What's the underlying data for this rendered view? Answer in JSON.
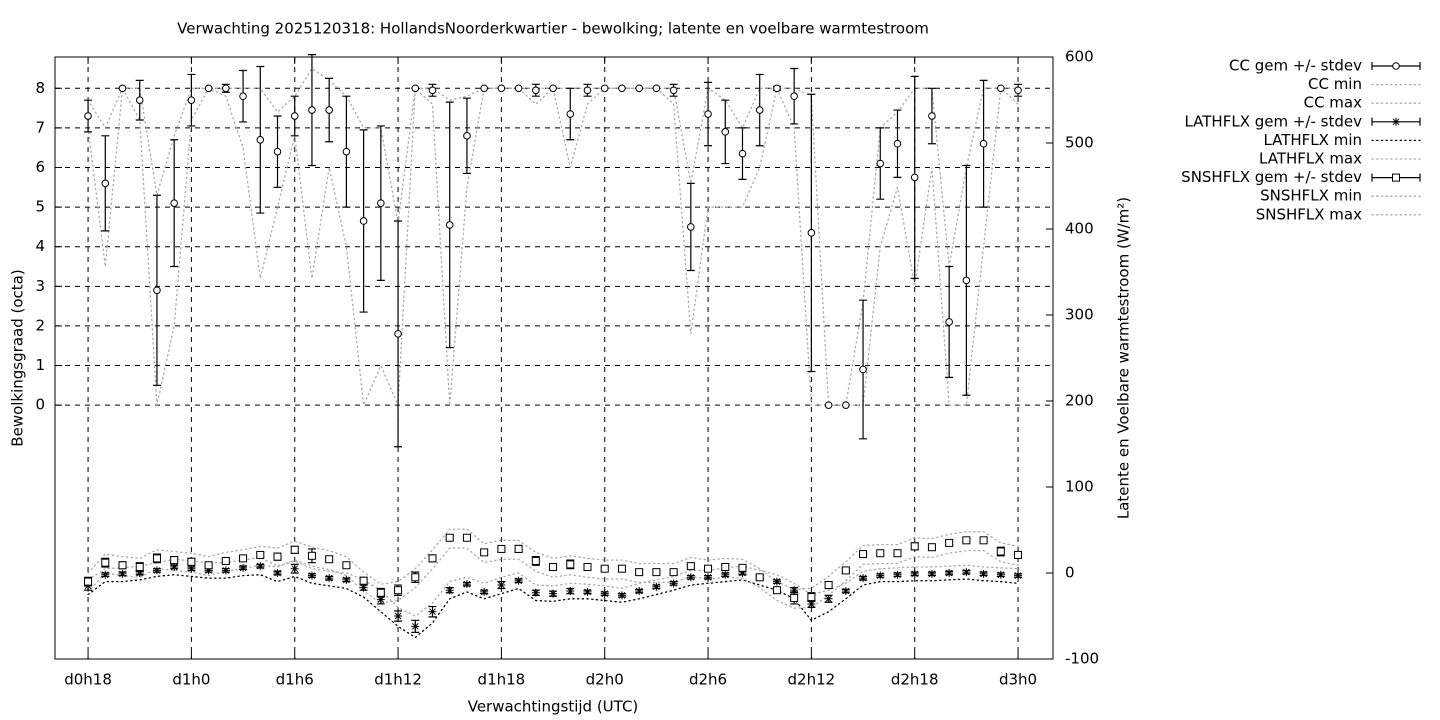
{
  "chart_data": {
    "type": "errorbar",
    "title": "Verwachting 2025120318: HollandsNoorderkwartier - bewolking; latente en voelbare warmtestroom",
    "xlabel": "Verwachtingstijd (UTC)",
    "ylabel": "Bewolkingsgraad (octa)",
    "y2label": "Latente en Voelbare warmtestroom (W/m²)",
    "x": [
      18,
      19,
      20,
      21,
      22,
      23,
      24,
      25,
      26,
      27,
      28,
      29,
      30,
      31,
      32,
      33,
      34,
      35,
      36,
      37,
      38,
      39,
      40,
      41,
      42,
      43,
      44,
      45,
      46,
      47,
      48,
      49,
      50,
      51,
      52,
      53,
      54,
      55,
      56,
      57,
      58,
      59,
      60,
      61,
      62,
      63,
      64,
      65,
      66,
      67,
      68,
      69,
      70,
      71,
      72
    ],
    "xlim": [
      16.08,
      74.03
    ],
    "xticks": [
      {
        "value": 18,
        "label": "d0h18"
      },
      {
        "value": 24,
        "label": "d1h0"
      },
      {
        "value": 30,
        "label": "d1h6"
      },
      {
        "value": 36,
        "label": "d1h12"
      },
      {
        "value": 42,
        "label": "d1h18"
      },
      {
        "value": 48,
        "label": "d2h0"
      },
      {
        "value": 54,
        "label": "d2h6"
      },
      {
        "value": 60,
        "label": "d2h12"
      },
      {
        "value": 66,
        "label": "d2h18"
      },
      {
        "value": 72,
        "label": "d3h0"
      }
    ],
    "ylim": [
      -6.41,
      8.79
    ],
    "yticks": [
      0,
      1,
      2,
      3,
      4,
      5,
      6,
      7,
      8
    ],
    "y2lim": [
      -100,
      600
    ],
    "y2ticks": [
      -100,
      0,
      100,
      200,
      300,
      400,
      500,
      600
    ],
    "grid": true,
    "legend": "outside-right",
    "series": [
      {
        "name": "CC gem +/- stdev",
        "color": "#000000",
        "marker": "circle",
        "values": [
          7.3,
          5.6,
          8.0,
          7.7,
          2.9,
          5.1,
          7.7,
          8.0,
          8.0,
          7.8,
          6.7,
          6.4,
          7.3,
          7.45,
          7.45,
          6.4,
          4.65,
          5.1,
          1.8,
          8.0,
          7.95,
          4.55,
          6.8,
          8.0,
          8.0,
          8.0,
          7.95,
          8.0,
          7.35,
          7.95,
          8.0,
          8.0,
          8.0,
          8.0,
          7.95,
          4.5,
          7.35,
          6.9,
          6.35,
          7.45,
          8.0,
          7.8,
          4.35,
          0,
          0,
          0.9,
          6.1,
          6.6,
          5.75,
          7.3,
          2.1,
          3.15,
          6.6,
          8.0,
          7.95
        ],
        "errors": [
          0.4,
          1.2,
          0,
          0.5,
          2.4,
          1.6,
          0.65,
          0,
          0.1,
          0.65,
          1.85,
          0.9,
          0.5,
          1.4,
          0.8,
          1.4,
          2.3,
          1.95,
          2.85,
          0,
          0.15,
          3.1,
          0.95,
          0,
          0,
          0,
          0.15,
          0,
          0.65,
          0.15,
          0,
          0,
          0,
          0,
          0.15,
          1.1,
          0.8,
          0.8,
          0.65,
          0.9,
          0.05,
          0.7,
          3.5,
          0,
          0,
          1.75,
          0.9,
          0.85,
          2.55,
          0.7,
          1.4,
          2.9,
          1.6,
          0,
          0.15
        ]
      },
      {
        "name": "CC min",
        "color": "#a8a8a8",
        "dash": "dotted",
        "values": [
          7,
          3.5,
          8,
          7.2,
          0,
          2,
          7.2,
          8,
          7.8,
          6.5,
          3.2,
          5,
          6.8,
          3.2,
          6,
          4,
          0,
          1,
          0,
          8,
          7.6,
          0,
          5.5,
          8,
          8,
          8,
          7.6,
          8,
          6,
          7.6,
          8,
          8,
          8,
          8,
          7.6,
          1.8,
          5,
          5,
          5,
          6,
          8,
          7,
          0,
          0,
          0,
          0,
          4,
          5.5,
          3,
          6,
          0,
          0,
          4,
          8,
          7.6
        ]
      },
      {
        "name": "CC max",
        "color": "#a8a8a8",
        "dash": "dotted",
        "values": [
          7.7,
          7,
          8,
          8,
          5.3,
          6.8,
          8,
          8,
          8,
          8,
          8,
          7.4,
          7.8,
          8.5,
          8.2,
          7.8,
          7,
          7,
          4.6,
          8,
          8,
          7.7,
          7.8,
          8,
          8,
          8,
          8,
          8,
          8,
          8,
          8,
          8,
          8,
          8,
          8,
          5.6,
          8,
          7.7,
          7,
          8,
          8,
          8,
          7.8,
          0,
          0,
          2.6,
          7,
          7.4,
          8,
          8,
          3.5,
          6,
          8,
          8,
          8
        ]
      },
      {
        "name": "LATHFLX gem +/- stdev",
        "color": "#000000",
        "marker": "asterisk",
        "axis": "y2",
        "values": [
          -15,
          -2,
          -1,
          0,
          3,
          7,
          5,
          3,
          3,
          6,
          8,
          0,
          5,
          -3,
          -6,
          -8,
          -17,
          -31,
          -50,
          -62,
          -45,
          -20,
          -13,
          -22,
          -14,
          -9,
          -23,
          -24,
          -21,
          -22,
          -24,
          -26,
          -21,
          -16,
          -12,
          -5,
          -5,
          -2,
          0,
          -5,
          -10,
          -20,
          -36,
          -30,
          -21,
          -6,
          -3,
          -2,
          -1,
          -1,
          0,
          1,
          -1,
          -2,
          -3
        ],
        "errors": [
          5,
          2,
          2,
          2,
          2,
          2,
          2,
          2,
          2,
          2,
          2,
          2,
          5,
          2,
          2,
          2,
          3,
          5,
          6,
          7,
          6,
          3,
          2,
          2,
          4,
          2,
          3,
          3,
          3,
          2,
          2,
          2,
          2,
          2,
          2,
          2,
          2,
          2,
          2,
          2,
          2,
          3,
          4,
          4,
          2,
          2,
          2,
          2,
          2,
          2,
          2,
          2,
          2,
          2,
          2
        ]
      },
      {
        "name": "LATHFLX min",
        "color": "#000000",
        "dash": "dotted",
        "axis": "y2",
        "values": [
          -25,
          -10,
          -10,
          -8,
          -4,
          -2,
          -4,
          -6,
          -6,
          -3,
          -2,
          -10,
          -4,
          -12,
          -15,
          -18,
          -28,
          -45,
          -62,
          -75,
          -58,
          -30,
          -22,
          -30,
          -24,
          -18,
          -32,
          -33,
          -30,
          -30,
          -32,
          -34,
          -30,
          -25,
          -20,
          -14,
          -12,
          -10,
          -8,
          -14,
          -20,
          -30,
          -55,
          -45,
          -30,
          -14,
          -10,
          -10,
          -9,
          -9,
          -8,
          -7,
          -9,
          -10,
          -12
        ]
      },
      {
        "name": "LATHFLX max",
        "color": "#a8a8a8",
        "dash": "dotted",
        "axis": "y2",
        "values": [
          -8,
          5,
          6,
          8,
          12,
          16,
          14,
          12,
          12,
          15,
          18,
          8,
          14,
          5,
          2,
          0,
          -8,
          -20,
          -40,
          -50,
          -35,
          -10,
          -5,
          -12,
          -5,
          0,
          -14,
          -15,
          -12,
          -13,
          -15,
          -18,
          -12,
          -8,
          -4,
          3,
          3,
          6,
          8,
          3,
          -2,
          -12,
          -25,
          -20,
          -12,
          2,
          5,
          6,
          7,
          7,
          8,
          9,
          7,
          6,
          5
        ]
      },
      {
        "name": "SNSHFLX gem +/- stdev",
        "color": "#000000",
        "marker": "square",
        "axis": "y2",
        "values": [
          -10,
          12,
          9,
          7,
          17,
          15,
          13,
          9,
          14,
          17,
          21,
          19,
          27,
          20,
          16,
          9,
          -9,
          -23,
          -20,
          -5,
          17,
          41,
          41,
          24,
          28,
          28,
          14,
          7,
          10,
          7,
          5,
          5,
          1,
          1,
          1,
          8,
          5,
          7,
          6,
          -5,
          -20,
          -29,
          -28,
          -14,
          3,
          22,
          23,
          23,
          31,
          30,
          35,
          38,
          38,
          25,
          21
        ],
        "errors": [
          5,
          5,
          4,
          5,
          5,
          4,
          4,
          2,
          2,
          2,
          2,
          4,
          4,
          8,
          2,
          2,
          4,
          5,
          6,
          6,
          4,
          2,
          2,
          2,
          3,
          4,
          5,
          2,
          5,
          2,
          2,
          2,
          2,
          2,
          2,
          2,
          2,
          2,
          2,
          2,
          2,
          7,
          5,
          4,
          2,
          2,
          2,
          2,
          4,
          2,
          2,
          2,
          2,
          5,
          2
        ]
      },
      {
        "name": "SNSHFLX min",
        "color": "#a8a8a8",
        "dash": "dotted",
        "axis": "y2",
        "values": [
          -22,
          0,
          -3,
          -5,
          5,
          3,
          1,
          -3,
          2,
          5,
          9,
          7,
          15,
          8,
          4,
          -3,
          -21,
          -35,
          -32,
          -17,
          5,
          29,
          29,
          12,
          16,
          16,
          2,
          -5,
          -2,
          -5,
          -7,
          -7,
          -11,
          -11,
          -11,
          -4,
          -7,
          -5,
          -6,
          -17,
          -32,
          -41,
          -40,
          -26,
          -9,
          10,
          11,
          11,
          19,
          18,
          23,
          26,
          26,
          13,
          9
        ]
      },
      {
        "name": "SNSHFLX max",
        "color": "#a8a8a8",
        "dash": "dotted",
        "axis": "y2",
        "values": [
          0,
          22,
          19,
          17,
          27,
          25,
          23,
          19,
          24,
          27,
          31,
          29,
          37,
          30,
          26,
          19,
          1,
          -13,
          -10,
          5,
          27,
          51,
          51,
          34,
          38,
          38,
          24,
          17,
          20,
          17,
          15,
          15,
          11,
          11,
          11,
          18,
          15,
          17,
          16,
          5,
          -10,
          -19,
          -18,
          -4,
          13,
          32,
          33,
          33,
          41,
          40,
          45,
          48,
          48,
          35,
          31
        ]
      }
    ]
  }
}
